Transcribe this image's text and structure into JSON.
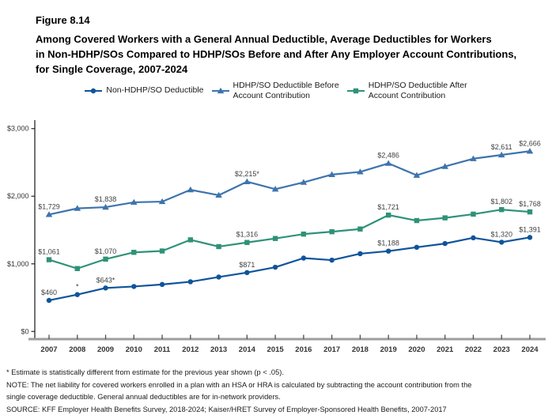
{
  "header": {
    "figure_label": "Figure 8.14",
    "title_lines": [
      "Among Covered Workers with a General Annual Deductible, Average Deductibles for Workers",
      "in Non-HDHP/SOs Compared to HDHP/SOs Before and After Any Employer Account Contributions,",
      "for Single Coverage, 2007-2024"
    ]
  },
  "legend": {
    "items": [
      {
        "label_lines": [
          "Non-HDHP/SO Deductible"
        ],
        "marker": "circle",
        "color": "#0f549b"
      },
      {
        "label_lines": [
          "HDHP/SO Deductible Before",
          "Account Contribution"
        ],
        "marker": "triangle",
        "color": "#3d74ad"
      },
      {
        "label_lines": [
          "HDHP/SO Deductible After",
          "Account Contribution"
        ],
        "marker": "square",
        "color": "#2e9278"
      }
    ]
  },
  "chart_data": {
    "type": "line",
    "title": "Among Covered Workers with a General Annual Deductible, Average Deductibles for Workers in Non-HDHP/SOs Compared to HDHP/SOs Before and After Any Employer Account Contributions, for Single Coverage, 2007-2024",
    "x": [
      2007,
      2008,
      2009,
      2010,
      2011,
      2012,
      2013,
      2014,
      2015,
      2016,
      2017,
      2018,
      2019,
      2020,
      2021,
      2022,
      2023,
      2024
    ],
    "ylim": [
      0,
      3000
    ],
    "yticks": [
      0,
      1000,
      2000,
      3000
    ],
    "ytick_labels": [
      "$0",
      "$1,000",
      "$2,000",
      "$3,000"
    ],
    "grid": false,
    "legend_position": "top",
    "axis_colors": {
      "axis_line": "#9e9e9e",
      "y_axis_line": "#262626",
      "tick": "#4d4d4d",
      "label_text": "#404040"
    },
    "series": [
      {
        "name": "Non-HDHP/SO Deductible",
        "marker": "circle",
        "color": "#0f549b",
        "values": [
          460,
          545,
          643,
          665,
          695,
          735,
          805,
          871,
          950,
          1085,
          1055,
          1150,
          1188,
          1245,
          1300,
          1385,
          1320,
          1391
        ],
        "point_labels": {
          "2007": "$460",
          "2008": "*",
          "2009": "$643*",
          "2014": "$871",
          "2019": "$1,188",
          "2023": "$1,320",
          "2024": "$1,391"
        }
      },
      {
        "name": "HDHP/SO Deductible Before Account Contribution",
        "marker": "triangle",
        "color": "#3d74ad",
        "values": [
          1729,
          1820,
          1838,
          1910,
          1920,
          2095,
          2015,
          2215,
          2105,
          2205,
          2320,
          2360,
          2486,
          2310,
          2440,
          2555,
          2611,
          2666
        ],
        "point_labels": {
          "2007": "$1,729",
          "2009": "$1,838",
          "2014": "$2,215*",
          "2019": "$2,486",
          "2023": "$2,611",
          "2024": "$2,666"
        }
      },
      {
        "name": "HDHP/SO Deductible After Account Contribution",
        "marker": "square",
        "color": "#2e9278",
        "values": [
          1061,
          930,
          1070,
          1170,
          1190,
          1355,
          1255,
          1316,
          1375,
          1440,
          1475,
          1515,
          1721,
          1640,
          1680,
          1735,
          1802,
          1768
        ],
        "point_labels": {
          "2007": "$1,061",
          "2009": "$1,070",
          "2014": "$1,316",
          "2019": "$1,721",
          "2023": "$1,802",
          "2024": "$1,768"
        }
      }
    ]
  },
  "footnotes": {
    "lines": [
      "* Estimate is statistically different from estimate for the previous year shown (p < .05).",
      "NOTE: The net liability for covered workers enrolled in a plan with an HSA or HRA is calculated by subtracting the account contribution from the",
      "single coverage deductible. General annual deductibles are for in-network providers.",
      "SOURCE: KFF Employer Health Benefits Survey, 2018-2024; Kaiser/HRET Survey of Employer-Sponsored Health Benefits, 2007-2017"
    ]
  }
}
